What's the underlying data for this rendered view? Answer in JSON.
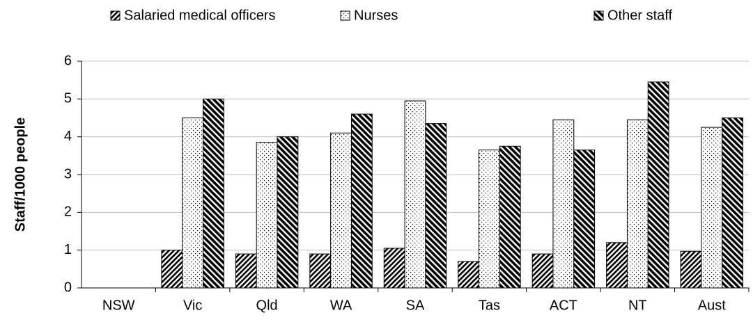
{
  "chart_data": {
    "type": "bar",
    "y_label": "Staff/1000 people",
    "categories": [
      "NSW",
      "Vic",
      "Qld",
      "WA",
      "SA",
      "Tas",
      "ACT",
      "NT",
      "Aust"
    ],
    "series": [
      {
        "name": "Salaried medical officers",
        "color": "#000000",
        "pattern": "back-diagonal",
        "values": [
          null,
          1.0,
          0.9,
          0.9,
          1.05,
          0.7,
          0.9,
          1.2,
          0.97
        ]
      },
      {
        "name": "Nurses",
        "color": "#000000",
        "pattern": "dots",
        "values": [
          null,
          4.5,
          3.85,
          4.1,
          4.95,
          3.65,
          4.45,
          4.45,
          4.25
        ]
      },
      {
        "name": "Other staff",
        "color": "#000000",
        "pattern": "forward-diagonal",
        "values": [
          null,
          5.0,
          4.0,
          4.6,
          4.35,
          3.75,
          3.65,
          5.45,
          4.5
        ]
      }
    ],
    "ylim": [
      0,
      6
    ],
    "yticks": [
      0,
      1,
      2,
      3,
      4,
      5,
      6
    ],
    "grid": true,
    "legend": "top"
  }
}
